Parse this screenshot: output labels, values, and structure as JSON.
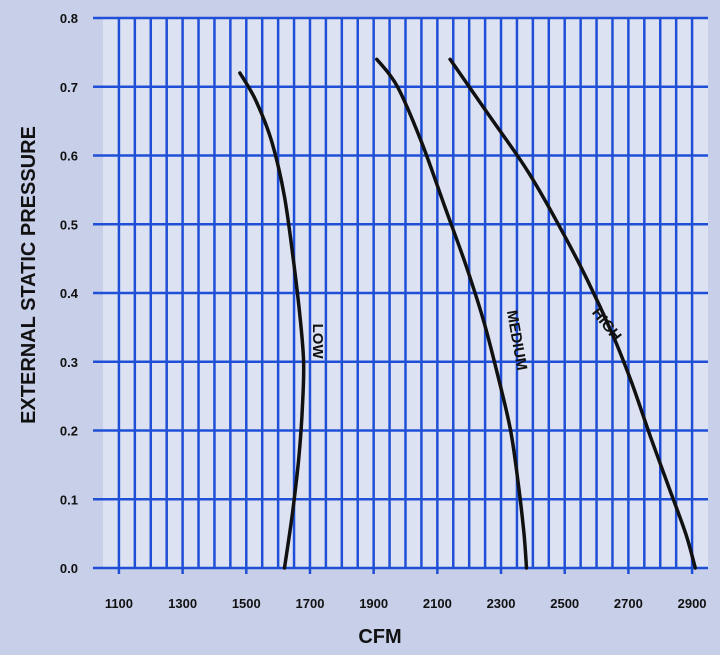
{
  "chart_data": {
    "type": "line",
    "xlabel": "CFM",
    "ylabel": "EXTERNAL STATIC PRESSURE",
    "xlim": [
      1050,
      2950
    ],
    "ylim": [
      0,
      0.8
    ],
    "x_ticks": [
      "1100",
      "1300",
      "1500",
      "1700",
      "1900",
      "2100",
      "2300",
      "2500",
      "2700",
      "2900"
    ],
    "y_ticks": [
      "0.0",
      "0.1",
      "0.2",
      "0.3",
      "0.4",
      "0.5",
      "0.6",
      "0.7",
      "0.8"
    ],
    "grid": true,
    "colors": {
      "grid": "#1f4fd6",
      "line": "#111111",
      "background": "#c8cfe8"
    },
    "series": [
      {
        "name": "LOW",
        "points": [
          [
            1480,
            0.72
          ],
          [
            1530,
            0.68
          ],
          [
            1580,
            0.62
          ],
          [
            1620,
            0.54
          ],
          [
            1650,
            0.44
          ],
          [
            1670,
            0.36
          ],
          [
            1680,
            0.3
          ],
          [
            1677,
            0.24
          ],
          [
            1665,
            0.16
          ],
          [
            1645,
            0.08
          ],
          [
            1620,
            0.0
          ]
        ]
      },
      {
        "name": "MEDIUM",
        "points": [
          [
            1910,
            0.74
          ],
          [
            1975,
            0.7
          ],
          [
            2050,
            0.62
          ],
          [
            2120,
            0.53
          ],
          [
            2190,
            0.44
          ],
          [
            2245,
            0.36
          ],
          [
            2290,
            0.28
          ],
          [
            2330,
            0.2
          ],
          [
            2355,
            0.12
          ],
          [
            2372,
            0.05
          ],
          [
            2380,
            0.0
          ]
        ]
      },
      {
        "name": "HIGH",
        "points": [
          [
            2140,
            0.74
          ],
          [
            2260,
            0.66
          ],
          [
            2380,
            0.58
          ],
          [
            2480,
            0.5
          ],
          [
            2570,
            0.42
          ],
          [
            2650,
            0.34
          ],
          [
            2710,
            0.27
          ],
          [
            2770,
            0.19
          ],
          [
            2825,
            0.12
          ],
          [
            2880,
            0.05
          ],
          [
            2910,
            0.0
          ]
        ]
      }
    ],
    "series_labels": [
      {
        "text": "LOW",
        "x": 1710,
        "y": 0.33
      },
      {
        "text": "MEDIUM",
        "x": 2335,
        "y": 0.33
      },
      {
        "text": "HIGH",
        "x": 2620,
        "y": 0.35
      }
    ]
  }
}
